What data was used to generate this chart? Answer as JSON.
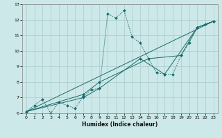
{
  "title": "",
  "xlabel": "Humidex (Indice chaleur)",
  "ylabel": "",
  "bg_color": "#cce8e8",
  "grid_color": "#aacccc",
  "line_color": "#1a6b6b",
  "xlim": [
    -0.5,
    23.5
  ],
  "ylim": [
    6,
    13
  ],
  "xticks": [
    0,
    1,
    2,
    3,
    4,
    5,
    6,
    7,
    8,
    9,
    10,
    11,
    12,
    13,
    14,
    15,
    16,
    17,
    18,
    19,
    20,
    21,
    22,
    23
  ],
  "yticks": [
    6,
    7,
    8,
    9,
    10,
    11,
    12,
    13
  ],
  "series": [
    {
      "x": [
        0,
        1,
        2,
        3,
        4,
        5,
        6,
        7,
        8,
        9,
        10,
        11,
        12,
        13,
        14,
        15,
        16,
        17,
        18,
        19,
        20,
        21,
        22,
        23
      ],
      "y": [
        6.1,
        6.5,
        6.9,
        6.0,
        6.7,
        6.5,
        6.3,
        7.1,
        7.5,
        7.6,
        12.4,
        12.1,
        12.6,
        10.9,
        10.5,
        9.5,
        8.6,
        8.5,
        8.5,
        9.7,
        10.5,
        11.5,
        11.7,
        11.9
      ],
      "style": "dotted",
      "marker": "D",
      "markersize": 2.0
    },
    {
      "x": [
        0,
        23
      ],
      "y": [
        6.1,
        11.9
      ],
      "style": "solid",
      "marker": null,
      "markersize": 0
    },
    {
      "x": [
        0,
        7,
        9,
        14,
        17,
        21,
        23
      ],
      "y": [
        6.1,
        7.0,
        7.6,
        9.5,
        8.5,
        11.5,
        11.9
      ],
      "style": "solid",
      "marker": "D",
      "markersize": 2.0
    },
    {
      "x": [
        0,
        7,
        9,
        15,
        19,
        21,
        23
      ],
      "y": [
        6.1,
        7.2,
        8.0,
        9.5,
        9.7,
        11.5,
        11.9
      ],
      "style": "solid",
      "marker": "D",
      "markersize": 2.0
    }
  ]
}
